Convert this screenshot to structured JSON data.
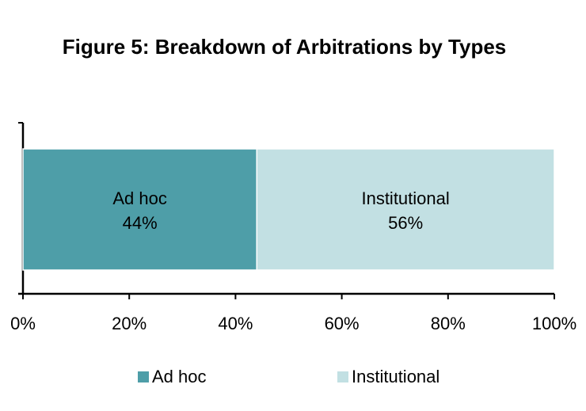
{
  "chart_data": {
    "type": "bar",
    "orientation": "horizontal-stacked-100",
    "title": "Figure 5: Breakdown of Arbitrations by Types",
    "categories": [
      ""
    ],
    "series": [
      {
        "name": "Ad hoc",
        "values": [
          44
        ],
        "label": "44%",
        "color": "#4e9ea8"
      },
      {
        "name": "Institutional",
        "values": [
          56
        ],
        "label": "56%",
        "color": "#c2e0e3"
      }
    ],
    "xlim": [
      0,
      100
    ],
    "x_ticks": [
      "0%",
      "20%",
      "40%",
      "60%",
      "80%",
      "100%"
    ],
    "grid": false,
    "legend_position": "bottom"
  }
}
